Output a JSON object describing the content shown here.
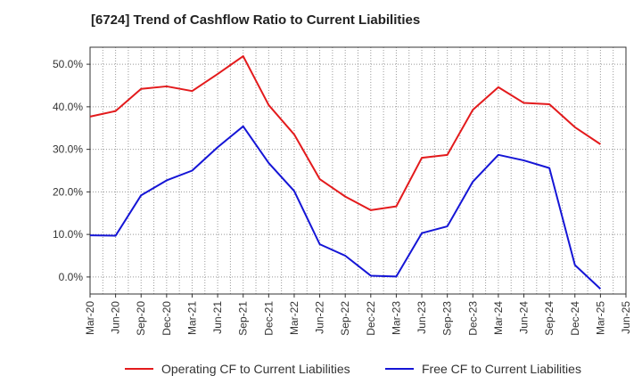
{
  "chart_data": {
    "type": "line",
    "title": "[6724]  Trend of Cashflow Ratio to Current Liabilities",
    "xlabel": "",
    "ylabel": "",
    "categories": [
      "Mar-20",
      "Jun-20",
      "Sep-20",
      "Dec-20",
      "Mar-21",
      "Jun-21",
      "Sep-21",
      "Dec-21",
      "Mar-22",
      "Jun-22",
      "Sep-22",
      "Dec-22",
      "Mar-23",
      "Jun-23",
      "Sep-23",
      "Dec-23",
      "Mar-24",
      "Jun-24",
      "Sep-24",
      "Dec-24",
      "Mar-25",
      "Jun-25"
    ],
    "y_ticks": [
      "0.0%",
      "10.0%",
      "20.0%",
      "30.0%",
      "40.0%",
      "50.0%"
    ],
    "ylim": [
      -4,
      54
    ],
    "grid": true,
    "legend_position": "bottom",
    "series": [
      {
        "name": "Operating CF to Current Liabilities",
        "color": "#e31a1c",
        "values": [
          37.7,
          39.0,
          44.2,
          44.8,
          43.7,
          47.7,
          51.9,
          40.4,
          33.5,
          23.0,
          18.9,
          15.7,
          16.6,
          28.0,
          28.7,
          39.3,
          44.6,
          40.9,
          40.6,
          35.2,
          31.2,
          null
        ]
      },
      {
        "name": "Free CF to Current Liabilities",
        "color": "#1515d6",
        "values": [
          9.8,
          9.7,
          19.2,
          22.7,
          25.0,
          30.5,
          35.4,
          26.8,
          20.2,
          7.7,
          5.0,
          0.3,
          0.1,
          10.3,
          11.9,
          22.4,
          28.7,
          27.4,
          25.6,
          2.8,
          -2.8,
          null
        ]
      }
    ]
  }
}
